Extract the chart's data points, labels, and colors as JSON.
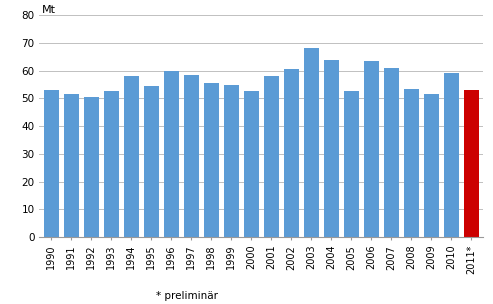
{
  "years": [
    "1990",
    "1991",
    "1992",
    "1993",
    "1994",
    "1995",
    "1996",
    "1997",
    "1998",
    "1999",
    "2000",
    "2001",
    "2002",
    "2003",
    "2004",
    "2005",
    "2006",
    "2007",
    "2008",
    "2009",
    "2010",
    "2011*"
  ],
  "values": [
    53,
    51.5,
    50.5,
    52.5,
    58,
    54.5,
    60,
    58.5,
    55.5,
    55,
    52.5,
    58,
    60.5,
    68,
    64,
    52.5,
    63.5,
    61,
    53.5,
    51.5,
    59,
    53
  ],
  "bar_colors": [
    "#5b9bd5",
    "#5b9bd5",
    "#5b9bd5",
    "#5b9bd5",
    "#5b9bd5",
    "#5b9bd5",
    "#5b9bd5",
    "#5b9bd5",
    "#5b9bd5",
    "#5b9bd5",
    "#5b9bd5",
    "#5b9bd5",
    "#5b9bd5",
    "#5b9bd5",
    "#5b9bd5",
    "#5b9bd5",
    "#5b9bd5",
    "#5b9bd5",
    "#5b9bd5",
    "#5b9bd5",
    "#5b9bd5",
    "#cc0000"
  ],
  "unit_label": "Mt",
  "ylim": [
    0,
    80
  ],
  "yticks": [
    0,
    10,
    20,
    30,
    40,
    50,
    60,
    70,
    80
  ],
  "footnote": "* preliminär",
  "background_color": "#ffffff",
  "grid_color": "#c0c0c0"
}
